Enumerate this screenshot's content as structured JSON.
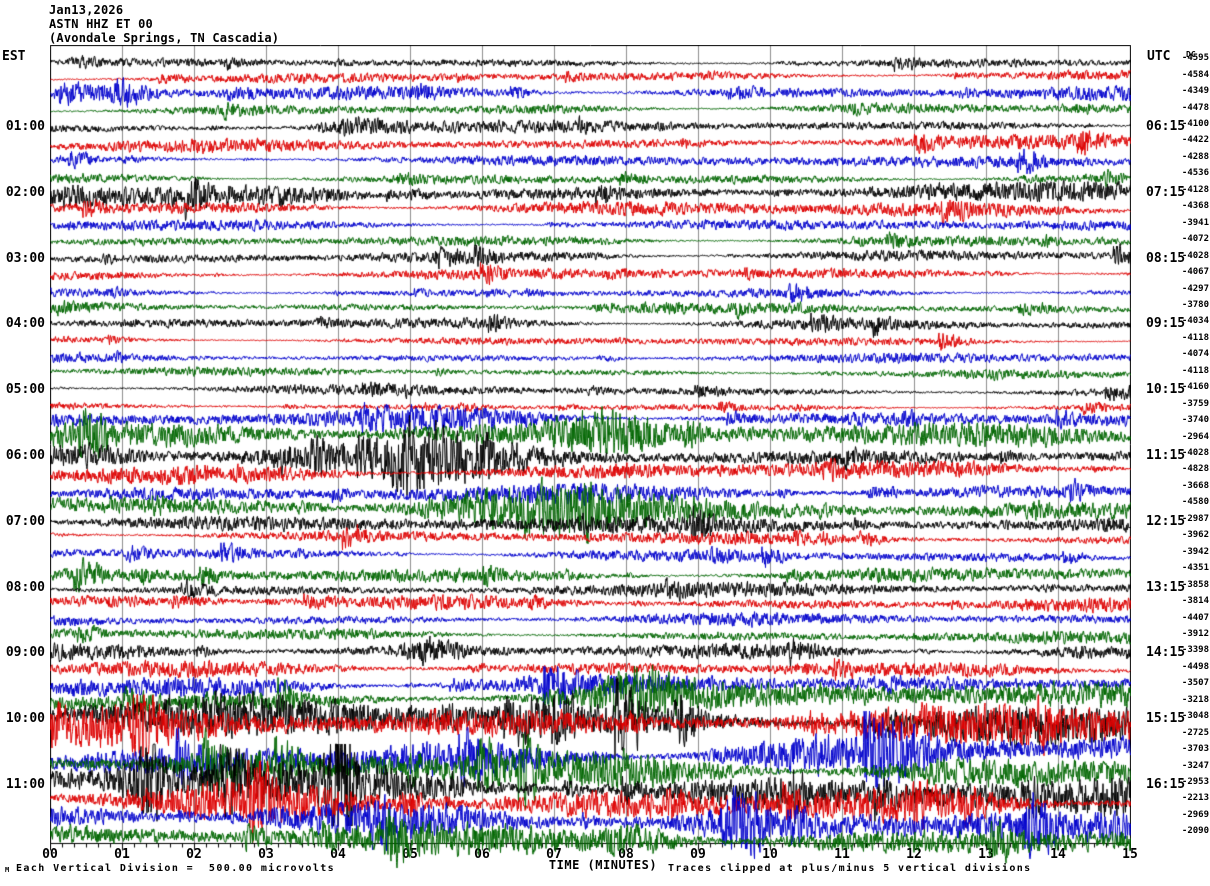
{
  "header": {
    "date": "Jan13,2026",
    "station": "ASTN HHZ ET 00",
    "location": "(Avondale Springs, TN Cascadia)",
    "left_tz": "EST",
    "right_tz": "UTC",
    "dc_label": "DC"
  },
  "footer": {
    "xaxis_title": "TIME (MINUTES)",
    "scale_note": "Each Vertical Division =  500.00 microvolts",
    "clip_note": "Traces clipped at plus/minus 5 vertical divisions",
    "watermark": "M"
  },
  "colors": {
    "trace_cycle": [
      "#000000",
      "#dd0000",
      "#0000cc",
      "#006600"
    ],
    "grid": "#8c8c8c",
    "frame": "#000000"
  },
  "chart_data": {
    "type": "line",
    "title": "ASTN HHZ ET 00 helicorder record",
    "xlabel": "TIME (MINUTES)",
    "x_range_minutes": [
      0,
      15
    ],
    "x_tick_labels": [
      "00",
      "01",
      "02",
      "03",
      "04",
      "05",
      "06",
      "07",
      "08",
      "09",
      "10",
      "11",
      "12",
      "13",
      "14",
      "15"
    ],
    "minutes_per_row": 15,
    "volts_per_division": "500.00 microvolts",
    "clip_divisions": 5,
    "grid": true,
    "rows": [
      {
        "dc": -4595,
        "amp": 5
      },
      {
        "dc": -4584,
        "amp": 6
      },
      {
        "dc": -4349,
        "amp": 8,
        "bursts": [
          {
            "t": 1.0,
            "w": 0.35,
            "g": 2.2
          }
        ]
      },
      {
        "dc": -4478,
        "amp": 6
      },
      {
        "dc": -4100,
        "est": "01:00",
        "utc": "06:15",
        "amp": 7,
        "bursts": [
          {
            "t": 4.2,
            "w": 0.5,
            "g": 1.8
          }
        ]
      },
      {
        "dc": -4422,
        "amp": 8
      },
      {
        "dc": -4288,
        "amp": 7
      },
      {
        "dc": -4536,
        "amp": 6
      },
      {
        "dc": -4128,
        "est": "02:00",
        "utc": "07:15",
        "amp": 11,
        "bursts": [
          {
            "t": 3.6,
            "w": 1.1,
            "g": 1.5
          }
        ]
      },
      {
        "dc": -4368,
        "amp": 9
      },
      {
        "dc": -3941,
        "amp": 7
      },
      {
        "dc": -4072,
        "amp": 6
      },
      {
        "dc": -4028,
        "est": "03:00",
        "utc": "08:15",
        "amp": 7
      },
      {
        "dc": -4067,
        "amp": 7
      },
      {
        "dc": -4297,
        "amp": 5
      },
      {
        "dc": -3780,
        "amp": 6
      },
      {
        "dc": -4034,
        "est": "04:00",
        "utc": "09:15",
        "amp": 7
      },
      {
        "dc": -4118,
        "amp": 5
      },
      {
        "dc": -4074,
        "amp": 6
      },
      {
        "dc": -4118,
        "amp": 5
      },
      {
        "dc": -4160,
        "est": "05:00",
        "utc": "10:15",
        "amp": 6
      },
      {
        "dc": -3759,
        "amp": 4
      },
      {
        "dc": -3740,
        "amp": 9,
        "bursts": [
          {
            "t": 6.2,
            "w": 1.5,
            "g": 1.3
          }
        ]
      },
      {
        "dc": -2964,
        "amp": 14,
        "bursts": [
          {
            "t": 5.0,
            "w": 1.2,
            "g": 1.5
          },
          {
            "t": 7.7,
            "w": 0.8,
            "g": 1.7
          }
        ]
      },
      {
        "dc": -4028,
        "est": "06:00",
        "utc": "11:15",
        "amp": 14,
        "bursts": [
          {
            "t": 0.6,
            "w": 0.7,
            "g": 1.7
          },
          {
            "t": 5.4,
            "w": 1.2,
            "g": 1.4
          }
        ]
      },
      {
        "dc": -4828,
        "amp": 11,
        "bursts": [
          {
            "t": 14.6,
            "w": 0.3,
            "g": 2.0
          }
        ]
      },
      {
        "dc": -3668,
        "amp": 11
      },
      {
        "dc": -4580,
        "amp": 15,
        "bursts": [
          {
            "t": 6.4,
            "w": 1.3,
            "g": 1.4
          }
        ]
      },
      {
        "dc": -2987,
        "est": "07:00",
        "utc": "12:15",
        "amp": 10
      },
      {
        "dc": -3962,
        "amp": 7
      },
      {
        "dc": -3942,
        "amp": 7
      },
      {
        "dc": -4351,
        "amp": 9
      },
      {
        "dc": -3858,
        "est": "08:00",
        "utc": "13:15",
        "amp": 8
      },
      {
        "dc": -3814,
        "amp": 8
      },
      {
        "dc": -4407,
        "amp": 7
      },
      {
        "dc": -3912,
        "amp": 7
      },
      {
        "dc": -3398,
        "est": "09:00",
        "utc": "14:15",
        "amp": 9,
        "bursts": [
          {
            "t": 5.3,
            "w": 0.4,
            "g": 1.8
          }
        ]
      },
      {
        "dc": -4498,
        "amp": 9
      },
      {
        "dc": -3507,
        "amp": 13
      },
      {
        "dc": -3218,
        "amp": 16,
        "bursts": [
          {
            "t": 8.1,
            "w": 0.6,
            "g": 1.8
          }
        ]
      },
      {
        "dc": -3048,
        "est": "10:00",
        "utc": "15:15",
        "amp": 24
      },
      {
        "dc": -2725,
        "amp": 24
      },
      {
        "dc": -3703,
        "amp": 22
      },
      {
        "dc": -3247,
        "amp": 22
      },
      {
        "dc": -2953,
        "est": "11:00",
        "utc": "16:15",
        "amp": 24,
        "bursts": [
          {
            "t": 1.35,
            "w": 0.25,
            "g": 2.6
          },
          {
            "t": 4.05,
            "w": 0.2,
            "g": 3.0
          }
        ]
      },
      {
        "dc": -2213,
        "amp": 22,
        "bursts": [
          {
            "t": 5.0,
            "w": 0.15,
            "g": 2.0
          }
        ]
      },
      {
        "dc": -2969,
        "amp": 20,
        "bursts": [
          {
            "t": 9.6,
            "w": 0.35,
            "g": 2.2
          }
        ]
      },
      {
        "dc": -2090,
        "amp": 18,
        "bursts": [
          {
            "t": 8.3,
            "w": 0.6,
            "g": 2.0
          }
        ]
      }
    ]
  }
}
